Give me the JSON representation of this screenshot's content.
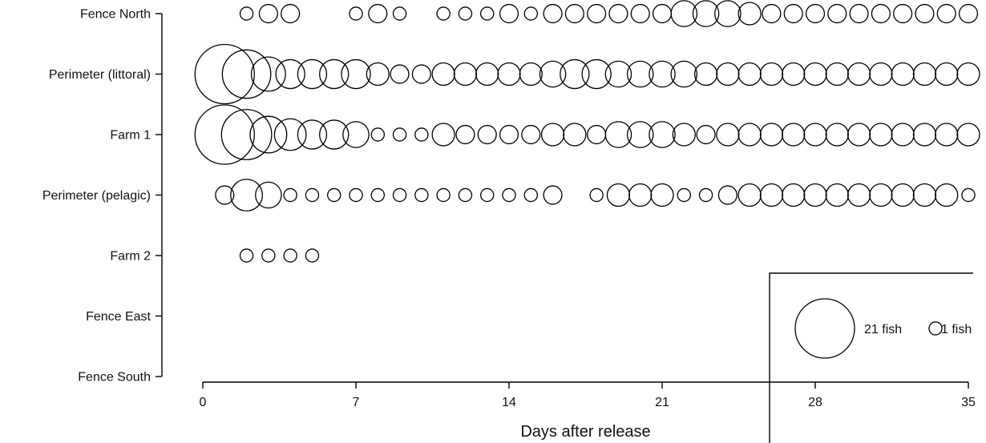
{
  "chart_data": {
    "type": "scatter",
    "subtype": "bubble",
    "xlabel": "Days after release",
    "xlim": [
      0,
      35
    ],
    "xticks": [
      0,
      7,
      14,
      21,
      28,
      35
    ],
    "categories": [
      "Fence North",
      "Perimeter (littoral)",
      "Farm 1",
      "Perimeter (pelagic)",
      "Farm 2",
      "Fence East",
      "Fence South"
    ],
    "grid": false,
    "legend": {
      "placement": "bottom-right",
      "items": [
        {
          "label": "21 fish",
          "size": 21
        },
        {
          "label": "1 fish",
          "size": 1
        }
      ]
    },
    "series": [
      {
        "category": "Fence North",
        "points": [
          [
            2,
            1
          ],
          [
            3,
            2
          ],
          [
            4,
            2
          ],
          [
            7,
            1
          ],
          [
            8,
            2
          ],
          [
            9,
            1
          ],
          [
            11,
            1
          ],
          [
            12,
            1
          ],
          [
            13,
            1
          ],
          [
            14,
            2
          ],
          [
            15,
            1
          ],
          [
            16,
            2
          ],
          [
            17,
            2
          ],
          [
            18,
            2
          ],
          [
            19,
            2
          ],
          [
            20,
            2
          ],
          [
            21,
            2
          ],
          [
            22,
            4
          ],
          [
            23,
            4
          ],
          [
            24,
            4
          ],
          [
            25,
            3
          ],
          [
            26,
            2
          ],
          [
            27,
            2
          ],
          [
            28,
            2
          ],
          [
            29,
            2
          ],
          [
            30,
            2
          ],
          [
            31,
            2
          ],
          [
            32,
            2
          ],
          [
            33,
            2
          ],
          [
            34,
            2
          ],
          [
            35,
            2
          ]
        ]
      },
      {
        "category": "Perimeter (littoral)",
        "points": [
          [
            1,
            21
          ],
          [
            2,
            14
          ],
          [
            3,
            7
          ],
          [
            4,
            5
          ],
          [
            5,
            5
          ],
          [
            6,
            5
          ],
          [
            7,
            5
          ],
          [
            8,
            3
          ],
          [
            9,
            2
          ],
          [
            10,
            2
          ],
          [
            11,
            3
          ],
          [
            12,
            3
          ],
          [
            13,
            3
          ],
          [
            14,
            3
          ],
          [
            15,
            3
          ],
          [
            16,
            4
          ],
          [
            17,
            5
          ],
          [
            18,
            5
          ],
          [
            19,
            4
          ],
          [
            20,
            4
          ],
          [
            21,
            4
          ],
          [
            22,
            4
          ],
          [
            23,
            3
          ],
          [
            24,
            3
          ],
          [
            25,
            3
          ],
          [
            26,
            3
          ],
          [
            27,
            3
          ],
          [
            28,
            3
          ],
          [
            29,
            3
          ],
          [
            30,
            3
          ],
          [
            31,
            3
          ],
          [
            32,
            3
          ],
          [
            33,
            3
          ],
          [
            34,
            3
          ],
          [
            35,
            3
          ]
        ]
      },
      {
        "category": "Farm 1",
        "points": [
          [
            1,
            21
          ],
          [
            2,
            15
          ],
          [
            3,
            8
          ],
          [
            4,
            6
          ],
          [
            5,
            5
          ],
          [
            6,
            5
          ],
          [
            7,
            4
          ],
          [
            8,
            1
          ],
          [
            9,
            1
          ],
          [
            10,
            1
          ],
          [
            11,
            3
          ],
          [
            12,
            2
          ],
          [
            13,
            2
          ],
          [
            14,
            2
          ],
          [
            15,
            2
          ],
          [
            16,
            3
          ],
          [
            17,
            3
          ],
          [
            18,
            2
          ],
          [
            19,
            4
          ],
          [
            20,
            4
          ],
          [
            21,
            4
          ],
          [
            22,
            3
          ],
          [
            23,
            2
          ],
          [
            24,
            3
          ],
          [
            25,
            3
          ],
          [
            26,
            3
          ],
          [
            27,
            3
          ],
          [
            28,
            3
          ],
          [
            29,
            3
          ],
          [
            30,
            3
          ],
          [
            31,
            3
          ],
          [
            32,
            3
          ],
          [
            33,
            3
          ],
          [
            34,
            3
          ],
          [
            35,
            3
          ]
        ]
      },
      {
        "category": "Perimeter (pelagic)",
        "points": [
          [
            1,
            2
          ],
          [
            2,
            6
          ],
          [
            3,
            4
          ],
          [
            4,
            1
          ],
          [
            5,
            1
          ],
          [
            6,
            1
          ],
          [
            7,
            1
          ],
          [
            8,
            1
          ],
          [
            9,
            1
          ],
          [
            10,
            1
          ],
          [
            11,
            1
          ],
          [
            12,
            1
          ],
          [
            13,
            1
          ],
          [
            14,
            1
          ],
          [
            15,
            1
          ],
          [
            16,
            2
          ],
          [
            18,
            1
          ],
          [
            19,
            3
          ],
          [
            20,
            3
          ],
          [
            21,
            3
          ],
          [
            22,
            1
          ],
          [
            23,
            1
          ],
          [
            24,
            2
          ],
          [
            25,
            3
          ],
          [
            26,
            3
          ],
          [
            27,
            3
          ],
          [
            28,
            3
          ],
          [
            29,
            3
          ],
          [
            30,
            3
          ],
          [
            31,
            3
          ],
          [
            32,
            3
          ],
          [
            33,
            3
          ],
          [
            34,
            3
          ],
          [
            35,
            1
          ]
        ]
      },
      {
        "category": "Farm 2",
        "points": [
          [
            2,
            1
          ],
          [
            3,
            1
          ],
          [
            4,
            1
          ],
          [
            5,
            1
          ]
        ]
      },
      {
        "category": "Fence East",
        "points": []
      },
      {
        "category": "Fence South",
        "points": []
      }
    ]
  }
}
